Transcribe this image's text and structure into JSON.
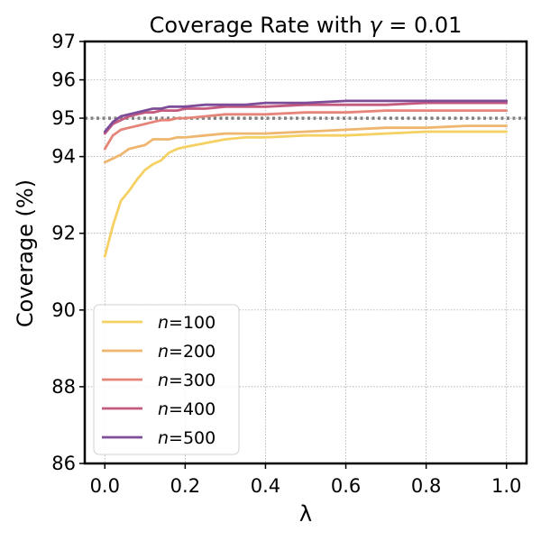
{
  "chart_data": {
    "type": "line",
    "title_prefix": "Coverage Rate with ",
    "title_symbol": "γ",
    "title_suffix": " = 0.01",
    "xlabel": "λ",
    "ylabel": "Coverage (%)",
    "xlim": [
      -0.05,
      1.05
    ],
    "ylim": [
      86,
      97
    ],
    "xticks": [
      0.0,
      0.2,
      0.4,
      0.6,
      0.8,
      1.0
    ],
    "xtick_labels": [
      "0.0",
      "0.2",
      "0.4",
      "0.6",
      "0.8",
      "1.0"
    ],
    "yticks": [
      86,
      88,
      90,
      92,
      94,
      95,
      96,
      97
    ],
    "ytick_labels": [
      "86",
      "88",
      "90",
      "92",
      "94",
      "95",
      "96",
      "97"
    ],
    "reference_line": {
      "y": 95,
      "color": "#808080"
    },
    "grid": true,
    "legend_position": "lower-left",
    "series": [
      {
        "name": "n=100",
        "legend_var": "n",
        "legend_value": "=100",
        "color": "#F5D063",
        "x": [
          0.0,
          0.02,
          0.04,
          0.06,
          0.08,
          0.1,
          0.12,
          0.14,
          0.16,
          0.18,
          0.2,
          0.25,
          0.3,
          0.35,
          0.4,
          0.5,
          0.6,
          0.7,
          0.8,
          0.9,
          1.0
        ],
        "y": [
          91.4,
          92.2,
          92.85,
          93.1,
          93.4,
          93.65,
          93.8,
          93.9,
          94.1,
          94.2,
          94.25,
          94.35,
          94.45,
          94.5,
          94.5,
          94.55,
          94.55,
          94.6,
          94.65,
          94.65,
          94.65
        ]
      },
      {
        "name": "n=200",
        "legend_var": "n",
        "legend_value": "=200",
        "color": "#EEB66E",
        "x": [
          0.0,
          0.02,
          0.04,
          0.06,
          0.08,
          0.1,
          0.12,
          0.14,
          0.16,
          0.18,
          0.2,
          0.25,
          0.3,
          0.35,
          0.4,
          0.5,
          0.6,
          0.7,
          0.8,
          0.9,
          1.0
        ],
        "y": [
          93.85,
          93.95,
          94.05,
          94.2,
          94.25,
          94.3,
          94.45,
          94.45,
          94.45,
          94.5,
          94.5,
          94.55,
          94.6,
          94.6,
          94.6,
          94.65,
          94.7,
          94.75,
          94.75,
          94.8,
          94.8
        ]
      },
      {
        "name": "n=300",
        "legend_var": "n",
        "legend_value": "=300",
        "color": "#E5857A",
        "x": [
          0.0,
          0.02,
          0.04,
          0.06,
          0.08,
          0.1,
          0.12,
          0.14,
          0.16,
          0.18,
          0.2,
          0.25,
          0.3,
          0.35,
          0.4,
          0.5,
          0.6,
          0.7,
          0.8,
          0.9,
          1.0
        ],
        "y": [
          94.2,
          94.55,
          94.7,
          94.75,
          94.8,
          94.85,
          94.9,
          94.95,
          94.95,
          95.0,
          95.0,
          95.05,
          95.1,
          95.1,
          95.1,
          95.15,
          95.15,
          95.2,
          95.2,
          95.2,
          95.2
        ]
      },
      {
        "name": "n=400",
        "legend_var": "n",
        "legend_value": "=400",
        "color": "#C45A7E",
        "x": [
          0.0,
          0.02,
          0.04,
          0.06,
          0.08,
          0.1,
          0.12,
          0.14,
          0.16,
          0.18,
          0.2,
          0.25,
          0.3,
          0.35,
          0.4,
          0.5,
          0.6,
          0.7,
          0.8,
          0.9,
          1.0
        ],
        "y": [
          94.6,
          94.85,
          94.95,
          95.05,
          95.1,
          95.15,
          95.15,
          95.2,
          95.2,
          95.2,
          95.25,
          95.25,
          95.3,
          95.3,
          95.3,
          95.35,
          95.35,
          95.35,
          95.4,
          95.4,
          95.4
        ]
      },
      {
        "name": "n=500",
        "legend_var": "n",
        "legend_value": "=500",
        "color": "#7E4D9A",
        "x": [
          0.0,
          0.02,
          0.04,
          0.06,
          0.08,
          0.1,
          0.12,
          0.14,
          0.16,
          0.18,
          0.2,
          0.25,
          0.3,
          0.35,
          0.4,
          0.5,
          0.6,
          0.7,
          0.8,
          0.9,
          1.0
        ],
        "y": [
          94.65,
          94.9,
          95.05,
          95.1,
          95.15,
          95.2,
          95.25,
          95.25,
          95.3,
          95.3,
          95.3,
          95.35,
          95.35,
          95.35,
          95.4,
          95.4,
          95.45,
          95.45,
          95.45,
          95.45,
          95.45
        ]
      }
    ]
  }
}
